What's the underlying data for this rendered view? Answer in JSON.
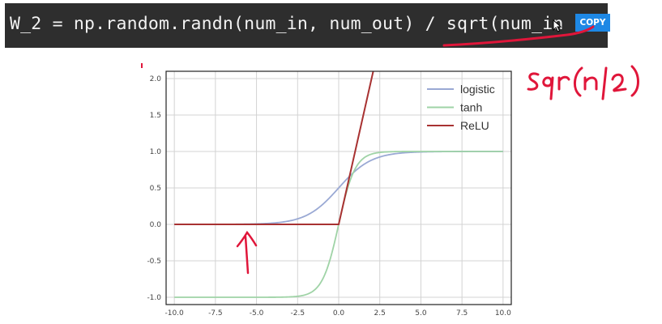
{
  "code": {
    "line": "W_2 = np.random.randn(num_in, num_out) / sqrt(num_in",
    "copy_label": "COPY"
  },
  "annotation": {
    "handwritten_text": "sqrt(n/2)"
  },
  "colors": {
    "logistic": "#9aa9d4",
    "tanh": "#9fd3a6",
    "relu": "#a83232",
    "ink": "#e0163a"
  },
  "chart_data": {
    "type": "line",
    "title": "",
    "xlabel": "",
    "ylabel": "",
    "xlim": [
      -10.5,
      10.5
    ],
    "ylim": [
      -1.1,
      2.1
    ],
    "xticks": [
      -10.0,
      -7.5,
      -5.0,
      -2.5,
      0.0,
      2.5,
      5.0,
      7.5,
      10.0
    ],
    "yticks": [
      -1.0,
      -0.5,
      0.0,
      0.5,
      1.0,
      1.5,
      2.0
    ],
    "xtick_labels": [
      "-10.0",
      "-7.5",
      "-5.0",
      "-2.5",
      "0.0",
      "2.5",
      "5.0",
      "7.5",
      "10.0"
    ],
    "ytick_labels": [
      "-1.0",
      "-0.5",
      "0.0",
      "0.5",
      "1.0",
      "1.5",
      "2.0"
    ],
    "grid": true,
    "legend_position": "top-right",
    "series": [
      {
        "name": "logistic",
        "function": "1/(1+exp(-x))",
        "x_range": [
          -10,
          10
        ]
      },
      {
        "name": "tanh",
        "function": "tanh(x)",
        "x_range": [
          -10,
          10
        ]
      },
      {
        "name": "ReLU",
        "function": "max(0,x)",
        "x_range": [
          -10,
          10
        ]
      }
    ]
  }
}
